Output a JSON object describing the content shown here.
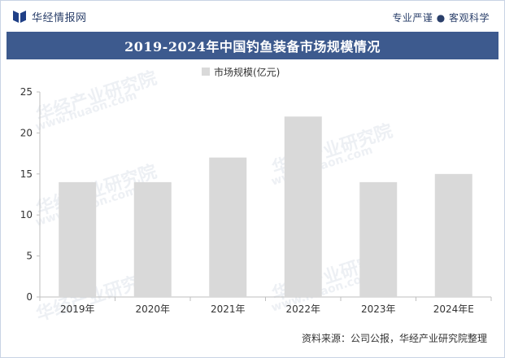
{
  "header": {
    "brand": "华经情报网",
    "slogan": "专业严谨 ● 客观科学"
  },
  "footer": {
    "source": "资料来源：公司公报，华经产业研究院整理"
  },
  "watermark": {
    "text": "华经产业研究院",
    "url": "www.huaon.com"
  },
  "colors": {
    "title_bar": "#3d5a8e",
    "bar": "#d9d9d9",
    "brand": "#1f3f86"
  },
  "chart_data": {
    "type": "bar",
    "title": "2019-2024年中国钓鱼装备市场规模情况",
    "categories": [
      "2019年",
      "2020年",
      "2021年",
      "2022年",
      "2023年",
      "2024年E"
    ],
    "series": [
      {
        "name": "市场规模(亿元)",
        "values": [
          14,
          14,
          17,
          22,
          14,
          15
        ]
      }
    ],
    "xlabel": "",
    "ylabel": "",
    "ylim": [
      0,
      25
    ],
    "yticks": [
      0,
      5,
      10,
      15,
      20,
      25
    ],
    "grid": false,
    "legend": "top-center"
  }
}
